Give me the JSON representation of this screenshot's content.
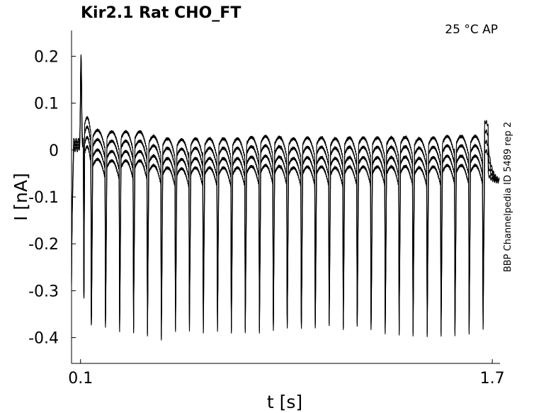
{
  "chart_data": {
    "type": "line",
    "title": "Kir2.1  Rat  CHO_FT",
    "condition": "25 °C  AP",
    "side_note": "BBP Channelpedia ID 5489 rep 2",
    "xlabel": "t [s]",
    "ylabel": "I [nA]",
    "xlim": [
      0.065,
      1.73
    ],
    "ylim": [
      -0.455,
      0.255
    ],
    "x_ticks": [
      0.1,
      1.7
    ],
    "x_tick_labels": [
      "0.1",
      "1.7"
    ],
    "y_ticks": [
      0.2,
      0.1,
      0,
      -0.1,
      -0.2,
      -0.3,
      -0.4
    ],
    "y_tick_labels": [
      "0.2",
      "0.1",
      "0",
      "-0.1",
      "-0.2",
      "-0.3",
      "-0.4"
    ],
    "grid": false,
    "legend": "none",
    "line_color": "#000000",
    "series": [
      {
        "sweep_start_s": 0.065,
        "holding_level_nA": 0.02,
        "first_spike_time_s": 0.102,
        "first_spike_peak_nA": 0.2,
        "spike_times_s": [
          0.113,
          0.142,
          0.197,
          0.252,
          0.306,
          0.36,
          0.414,
          0.469,
          0.523,
          0.577,
          0.632,
          0.686,
          0.74,
          0.795,
          0.849,
          0.903,
          0.958,
          1.012,
          1.066,
          1.121,
          1.175,
          1.229,
          1.284,
          1.338,
          1.392,
          1.447,
          1.501,
          1.555,
          1.61,
          1.664
        ],
        "spike_troughs_nA": [
          -0.34,
          -0.385,
          -0.38,
          -0.38,
          -0.38,
          -0.385,
          -0.395,
          -0.38,
          -0.38,
          -0.385,
          -0.385,
          -0.39,
          -0.39,
          -0.395,
          -0.39,
          -0.385,
          -0.39,
          -0.39,
          -0.385,
          -0.39,
          -0.38,
          -0.385,
          -0.385,
          -0.385,
          -0.385,
          -0.39,
          -0.39,
          -0.39,
          -0.39,
          -0.38
        ],
        "interspike_peak_nA": [
          0.075,
          0.048,
          0.045,
          0.045,
          0.045,
          0.035,
          0.03,
          0.028,
          0.03,
          0.03,
          0.03,
          0.03,
          0.033,
          0.035,
          0.033,
          0.03,
          0.032,
          0.032,
          0.03,
          0.032,
          0.032,
          0.032,
          0.032,
          0.033,
          0.03,
          0.032,
          0.035,
          0.035,
          0.035,
          0.06
        ],
        "sweep_offsets_nA": [
          0,
          -0.02,
          -0.042,
          -0.062
        ],
        "end_level_nA": -0.068
      }
    ]
  }
}
